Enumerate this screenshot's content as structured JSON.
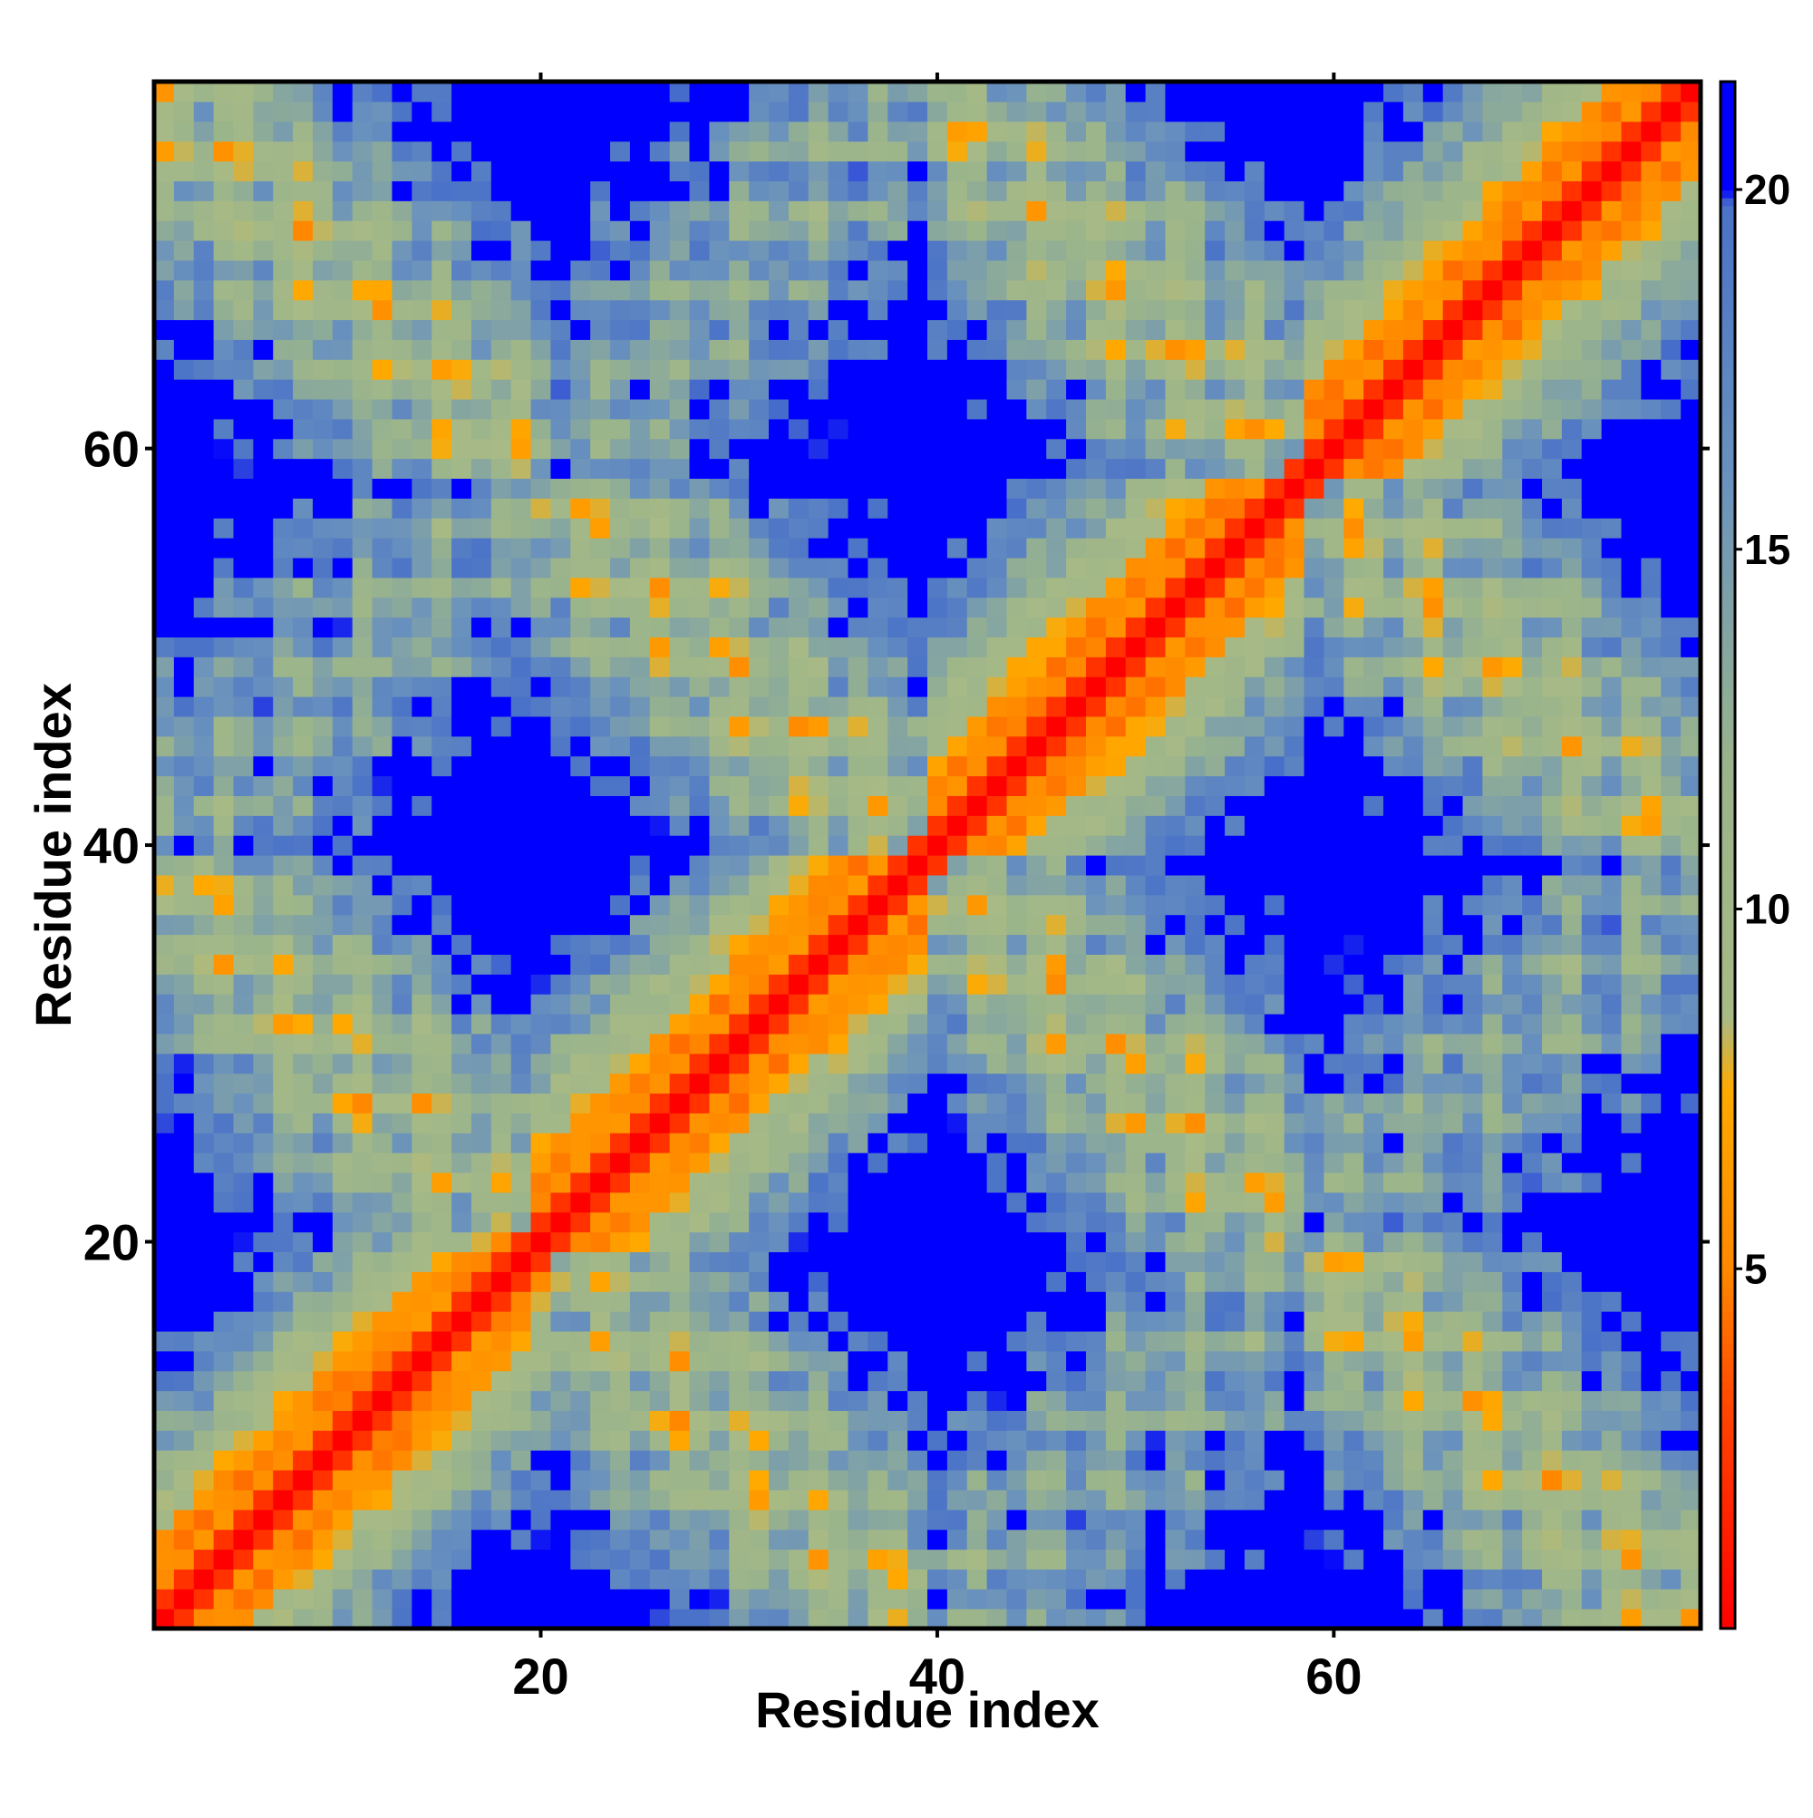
{
  "chart_data": {
    "type": "heatmap",
    "title": "",
    "xlabel": "Residue index",
    "ylabel": "Residue index",
    "n_residues": 78,
    "x_range": [
      1,
      78
    ],
    "y_range": [
      1,
      78
    ],
    "x_ticks": [
      20,
      40,
      60
    ],
    "y_ticks": [
      20,
      40,
      60
    ],
    "x_tick_labels": [
      "20",
      "40",
      "60"
    ],
    "y_tick_labels": [
      "20",
      "40",
      "60"
    ],
    "matrix": "symmetric residue-residue distance map (Å-scale values); reconstructed from a synthetic helical-bundle structure",
    "value_range": [
      0,
      21.5
    ],
    "colorbar": {
      "ticks": [
        5,
        10,
        15,
        20
      ],
      "tick_labels": [
        "5",
        "10",
        "15",
        "20"
      ],
      "range": [
        0,
        21.5
      ],
      "stops": [
        {
          "value": 0,
          "color": "#ff0000"
        },
        {
          "value": 3,
          "color": "#ff4400"
        },
        {
          "value": 5,
          "color": "#ff8800"
        },
        {
          "value": 7.5,
          "color": "#ffaa00"
        },
        {
          "value": 8.5,
          "color": "#a8ba85"
        },
        {
          "value": 12,
          "color": "#9ab48c"
        },
        {
          "value": 16,
          "color": "#6a92bd"
        },
        {
          "value": 19.8,
          "color": "#4a72c8"
        },
        {
          "value": 20,
          "color": "#0000ff"
        }
      ]
    },
    "grid": false,
    "legend": "colorbar-right"
  }
}
